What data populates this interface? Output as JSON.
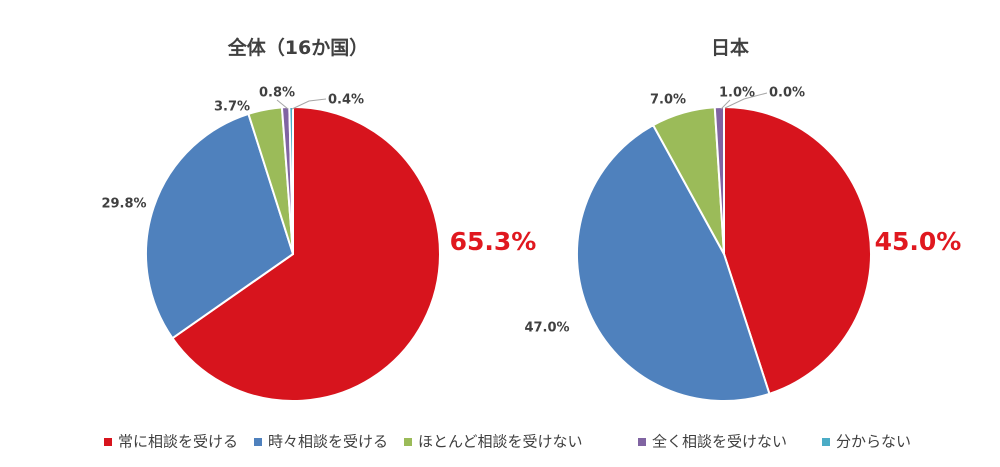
{
  "legend": [
    {
      "label": "常に相談を受ける",
      "color": "#d7141d"
    },
    {
      "label": "時々相談を受ける",
      "color": "#4f81bd"
    },
    {
      "label": "ほとんど相談を受けない",
      "color": "#9bbb59"
    },
    {
      "label": "全く相談を受けない",
      "color": "#8064a2"
    },
    {
      "label": "分からない",
      "color": "#4bacc6"
    }
  ],
  "chart_data": [
    {
      "type": "pie",
      "title": "全体（16か国）",
      "categories": [
        "常に相談を受ける",
        "時々相談を受ける",
        "ほとんど相談を受けない",
        "全く相談を受けない",
        "分からない"
      ],
      "values": [
        65.3,
        29.8,
        3.7,
        0.8,
        0.4
      ],
      "data_labels": [
        "65.3%",
        "29.8%",
        "3.7%",
        "0.8%",
        "0.4%"
      ],
      "highlighted_category": "常に相談を受ける",
      "highlight_color": "#e0181f",
      "legend_position": "bottom"
    },
    {
      "type": "pie",
      "title": "日本",
      "categories": [
        "常に相談を受ける",
        "時々相談を受ける",
        "ほとんど相談を受けない",
        "全く相談を受けない",
        "分からない"
      ],
      "values": [
        45.0,
        47.0,
        7.0,
        1.0,
        0.0
      ],
      "data_labels": [
        "45.0%",
        "47.0%",
        "7.0%",
        "1.0%",
        "0.0%"
      ],
      "highlighted_category": "常に相談を受ける",
      "highlight_color": "#e0181f",
      "legend_position": "bottom"
    }
  ]
}
